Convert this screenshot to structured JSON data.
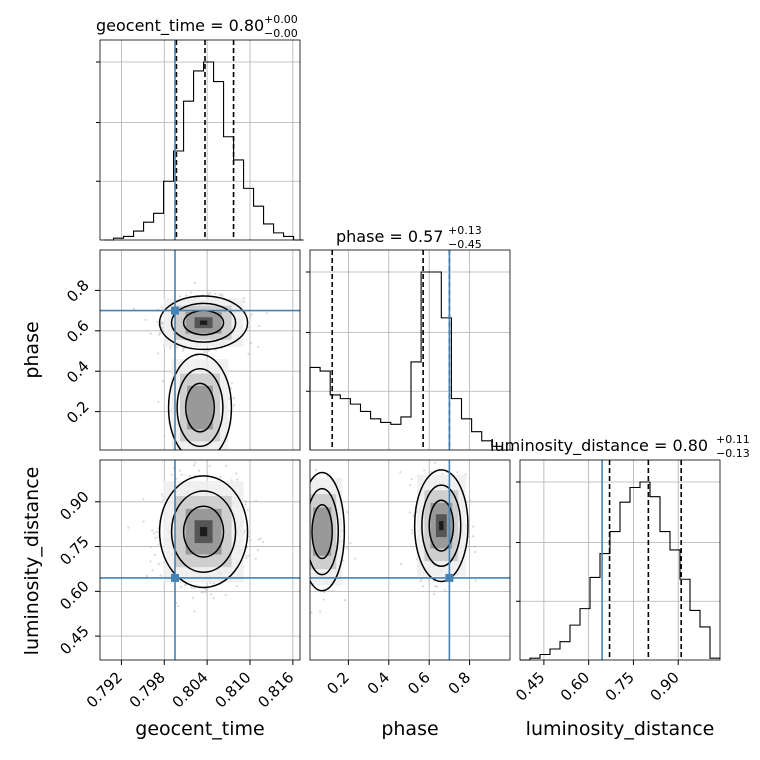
{
  "chart_data": {
    "type": "corner",
    "parameters": [
      "geocent_time",
      "phase",
      "luminosity_distance"
    ],
    "truth_color": "#4682b4",
    "truths": {
      "geocent_time": 0.7995,
      "phase": 0.7,
      "luminosity_distance": 0.645
    },
    "titles": [
      {
        "param": "geocent_time",
        "text": "geocent_time = 0.80",
        "sup": "+0.00",
        "sub": "−0.00"
      },
      {
        "param": "phase",
        "text": "phase = 0.57",
        "sup": "+0.13",
        "sub": "−0.45"
      },
      {
        "param": "luminosity_distance",
        "text": "luminosity_distance = 0.80",
        "sup": "+0.11",
        "sub": "−0.13"
      }
    ],
    "axes": {
      "geocent_time": {
        "range": [
          0.789,
          0.817
        ],
        "ticks": [
          "0.792",
          "0.798",
          "0.804",
          "0.810",
          "0.816"
        ],
        "label": "geocent_time"
      },
      "phase": {
        "range": [
          0.01,
          1.0
        ],
        "ticks": [
          "0.2",
          "0.4",
          "0.6",
          "0.8"
        ],
        "label": "phase"
      },
      "luminosity_distance": {
        "range": [
          0.37,
          1.04
        ],
        "ticks": [
          "0.45",
          "0.60",
          "0.75",
          "0.90"
        ],
        "label": "luminosity_distance"
      }
    },
    "histograms": {
      "geocent_time": {
        "edges_from": 0.7895,
        "bin_width": 0.0014,
        "counts": [
          0,
          1,
          2,
          5,
          10,
          15,
          33,
          50,
          78,
          95,
          100,
          89,
          58,
          45,
          29,
          19,
          9,
          4,
          2,
          0
        ],
        "quantiles": [
          0.7997,
          0.8037,
          0.8077
        ]
      },
      "phase": {
        "edges_from": 0.01,
        "bin_width": 0.05,
        "counts": [
          45,
          43,
          30,
          28,
          25,
          21,
          17,
          15,
          14,
          18,
          48,
          97,
          97,
          72,
          28,
          17,
          10,
          5,
          2,
          0
        ],
        "quantiles": [
          0.12,
          0.57,
          0.7
        ]
      },
      "luminosity_distance": {
        "edges_from": 0.37,
        "bin_width": 0.0335,
        "counts": [
          0,
          1,
          3,
          6,
          10,
          19,
          28,
          45,
          58,
          70,
          86,
          94,
          97,
          89,
          70,
          60,
          44,
          27,
          18,
          1
        ],
        "quantiles": [
          0.67,
          0.8,
          0.91
        ]
      }
    },
    "grid": true
  }
}
